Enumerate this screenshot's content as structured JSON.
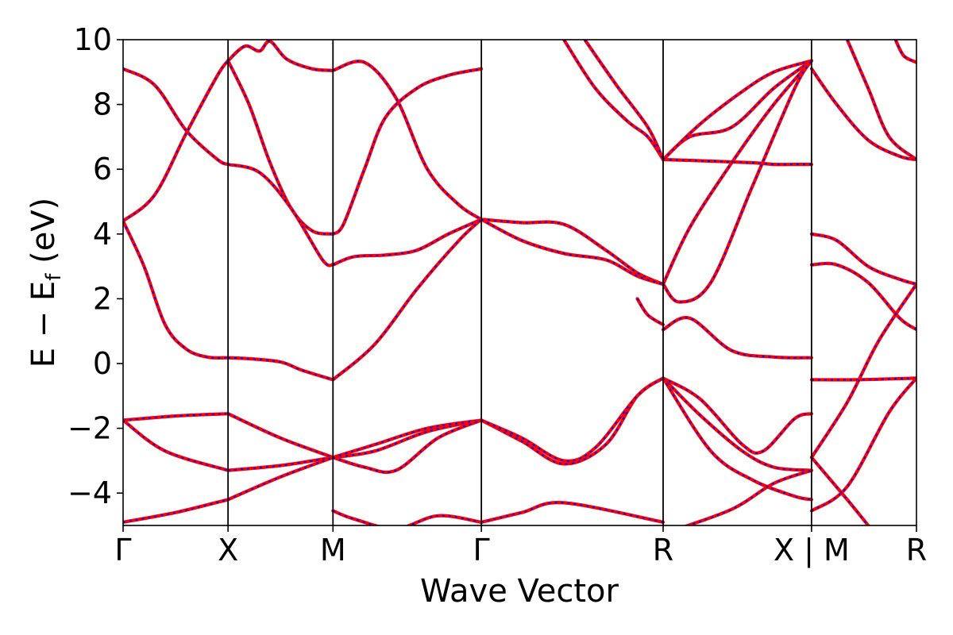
{
  "chart_data": {
    "type": "line",
    "title": "",
    "xlabel": "Wave Vector",
    "ylabel": "E − E_f (eV)",
    "ylabel_parts": {
      "main": "E − E",
      "sub": "f",
      "unit": " (eV)"
    },
    "ylim": [
      -5,
      10
    ],
    "y_ticks": [
      -4,
      -2,
      0,
      2,
      4,
      6,
      8,
      10
    ],
    "y_tick_labels": [
      "−4",
      "−2",
      "0",
      "2",
      "4",
      "6",
      "8",
      "10"
    ],
    "grid": false,
    "legend": "none",
    "kpath_labels": [
      "Γ",
      "X",
      "M",
      "Γ",
      "R",
      "X | M",
      "R"
    ],
    "kpath_positions": [
      0,
      0.5,
      1.0,
      1.707,
      2.573,
      3.28,
      3.78
    ],
    "series_style": [
      {
        "color": "#ff0000",
        "style": "solid"
      },
      {
        "color": "#0000ff",
        "style": "dashed"
      }
    ],
    "bands": [
      {
        "x": [
          0,
          0.15,
          0.3,
          0.45,
          0.5
        ],
        "y": [
          9.1,
          8.6,
          7.2,
          6.3,
          6.15
        ]
      },
      {
        "x": [
          0,
          0.15,
          0.3,
          0.45,
          0.5
        ],
        "y": [
          4.4,
          5.2,
          7.1,
          8.9,
          9.35
        ]
      },
      {
        "x": [
          0,
          0.1,
          0.2,
          0.3,
          0.4,
          0.5
        ],
        "y": [
          4.4,
          3.0,
          1.2,
          0.45,
          0.2,
          0.18
        ]
      },
      {
        "x": [
          0,
          0.25,
          0.5
        ],
        "y": [
          -1.75,
          -1.62,
          -1.55
        ]
      },
      {
        "x": [
          0,
          0.2,
          0.5
        ],
        "y": [
          -1.75,
          -2.7,
          -3.3
        ]
      },
      {
        "x": [
          0,
          0.25,
          0.5
        ],
        "y": [
          -4.9,
          -4.6,
          -4.2
        ]
      },
      {
        "x": [
          0.5,
          0.6,
          0.7,
          0.8,
          0.9,
          1.0
        ],
        "y": [
          9.35,
          8.0,
          6.2,
          4.8,
          4.1,
          4.0
        ]
      },
      {
        "x": [
          0.5,
          0.65,
          0.8,
          0.95,
          1.0
        ],
        "y": [
          6.15,
          5.9,
          4.8,
          3.2,
          3.05
        ]
      },
      {
        "x": [
          0.5,
          0.6,
          0.75,
          0.85,
          1.0
        ],
        "y": [
          0.18,
          0.15,
          0.05,
          -0.2,
          -0.5
        ]
      },
      {
        "x": [
          0.5,
          0.75,
          1.0
        ],
        "y": [
          -1.55,
          -2.3,
          -2.9
        ]
      },
      {
        "x": [
          0.5,
          0.75,
          1.0
        ],
        "y": [
          -3.3,
          -3.15,
          -2.9
        ]
      },
      {
        "x": [
          0.5,
          0.75,
          1.0
        ],
        "y": [
          -4.2,
          -3.5,
          -2.9
        ]
      },
      {
        "x": [
          0.5,
          0.58,
          0.65,
          0.7,
          0.78,
          0.9,
          1.0
        ],
        "y": [
          9.35,
          9.8,
          9.65,
          9.95,
          9.4,
          9.1,
          9.05
        ]
      },
      {
        "x": [
          1.0,
          1.15,
          1.3,
          1.45,
          1.6,
          1.707
        ],
        "y": [
          9.05,
          9.3,
          8.2,
          6.0,
          4.9,
          4.45
        ]
      },
      {
        "x": [
          1.0,
          1.05,
          1.15,
          1.25,
          1.4,
          1.55,
          1.707
        ],
        "y": [
          4.0,
          4.3,
          6.0,
          7.6,
          8.5,
          8.9,
          9.1
        ]
      },
      {
        "x": [
          1.0,
          1.1,
          1.25,
          1.4,
          1.55,
          1.707
        ],
        "y": [
          3.05,
          3.3,
          3.35,
          3.5,
          4.0,
          4.45
        ]
      },
      {
        "x": [
          1.0,
          1.2,
          1.4,
          1.6,
          1.707
        ],
        "y": [
          -0.5,
          0.6,
          2.3,
          3.8,
          4.45
        ]
      },
      {
        "x": [
          1.0,
          1.2,
          1.45,
          1.707
        ],
        "y": [
          -2.9,
          -2.7,
          -2.1,
          -1.75
        ]
      },
      {
        "x": [
          1.0,
          1.2,
          1.45,
          1.707
        ],
        "y": [
          -2.9,
          -2.5,
          -2.0,
          -1.75
        ]
      },
      {
        "x": [
          1.0,
          1.15,
          1.3,
          1.5,
          1.707
        ],
        "y": [
          -2.9,
          -3.2,
          -3.3,
          -2.3,
          -1.75
        ]
      },
      {
        "x": [
          1.0,
          1.1,
          1.3,
          1.5,
          1.707
        ],
        "y": [
          -4.55,
          -4.8,
          -5.1,
          -4.7,
          -4.9
        ]
      },
      {
        "x": [
          1.707,
          1.9,
          2.1,
          2.3,
          2.45,
          2.573
        ],
        "y": [
          4.45,
          4.35,
          4.3,
          3.5,
          2.8,
          2.45
        ]
      },
      {
        "x": [
          1.707,
          1.9,
          2.1,
          2.3,
          2.45,
          2.573
        ],
        "y": [
          4.45,
          3.8,
          3.4,
          3.2,
          2.7,
          2.45
        ]
      },
      {
        "x": [
          1.707,
          1.9,
          2.1,
          2.3,
          2.45,
          2.573
        ],
        "y": [
          -1.75,
          -2.4,
          -3.1,
          -2.5,
          -1.0,
          -0.45
        ]
      },
      {
        "x": [
          1.707,
          1.9,
          2.1,
          2.25,
          2.45,
          2.573
        ],
        "y": [
          -1.75,
          -2.3,
          -3.0,
          -2.6,
          -1.0,
          -0.45
        ]
      },
      {
        "x": [
          1.707,
          1.9,
          2.1,
          2.573
        ],
        "y": [
          -4.9,
          -4.6,
          -4.3,
          -4.9
        ]
      },
      {
        "x": [
          2.1,
          2.25,
          2.4,
          2.5,
          2.573
        ],
        "y": [
          10.0,
          8.5,
          7.5,
          7.0,
          6.3
        ]
      },
      {
        "x": [
          2.2,
          2.35,
          2.5,
          2.573
        ],
        "y": [
          10.0,
          8.6,
          7.3,
          6.3
        ]
      },
      {
        "x": [
          2.45,
          2.5,
          2.573
        ],
        "y": [
          2.0,
          1.5,
          1.2
        ]
      },
      {
        "x": [
          2.573,
          2.8,
          3.0,
          3.1,
          3.2,
          3.28
        ],
        "y": [
          6.3,
          6.25,
          6.2,
          6.15,
          6.15,
          6.15
        ]
      },
      {
        "x": [
          2.573,
          2.7,
          2.9,
          3.1,
          3.28
        ],
        "y": [
          6.3,
          7.0,
          7.3,
          8.5,
          9.35
        ]
      },
      {
        "x": [
          2.573,
          2.75,
          2.95,
          3.1,
          3.28
        ],
        "y": [
          6.3,
          7.4,
          8.4,
          9.0,
          9.35
        ]
      },
      {
        "x": [
          2.573,
          2.7,
          2.9,
          3.1,
          3.28
        ],
        "y": [
          2.45,
          4.2,
          6.2,
          8.0,
          9.35
        ]
      },
      {
        "x": [
          2.573,
          2.65,
          2.8,
          3.0,
          3.2,
          3.28
        ],
        "y": [
          2.45,
          1.9,
          2.5,
          5.5,
          8.5,
          9.35
        ]
      },
      {
        "x": [
          2.573,
          2.7,
          2.9,
          3.1,
          3.28
        ],
        "y": [
          1.05,
          1.4,
          0.4,
          0.2,
          0.18
        ]
      },
      {
        "x": [
          2.573,
          2.75,
          2.95,
          3.05,
          3.2,
          3.28
        ],
        "y": [
          -0.45,
          -1.1,
          -2.5,
          -2.7,
          -1.7,
          -1.55
        ]
      },
      {
        "x": [
          2.573,
          2.75,
          2.95,
          3.1,
          3.28
        ],
        "y": [
          -0.45,
          -1.6,
          -2.7,
          -3.2,
          -3.3
        ]
      },
      {
        "x": [
          2.573,
          2.8,
          3.0,
          3.2,
          3.28
        ],
        "y": [
          -0.45,
          -2.7,
          -3.6,
          -4.1,
          -4.2
        ]
      },
      {
        "x": [
          2.6,
          2.9,
          3.1,
          3.28
        ],
        "y": [
          -5.2,
          -4.5,
          -3.7,
          -3.3
        ]
      },
      {
        "x": [
          3.28,
          3.4,
          3.55,
          3.7,
          3.78
        ],
        "y": [
          9.1,
          8.0,
          6.9,
          6.4,
          6.3
        ]
      },
      {
        "x": [
          3.45,
          3.55,
          3.65,
          3.78
        ],
        "y": [
          10.0,
          8.5,
          7.0,
          6.3
        ]
      },
      {
        "x": [
          3.68,
          3.72,
          3.78
        ],
        "y": [
          10.0,
          9.5,
          9.3
        ]
      },
      {
        "x": [
          3.28,
          3.4,
          3.55,
          3.7,
          3.78
        ],
        "y": [
          4.0,
          3.8,
          3.0,
          2.6,
          2.45
        ]
      },
      {
        "x": [
          3.28,
          3.4,
          3.55,
          3.7,
          3.78
        ],
        "y": [
          3.05,
          3.05,
          2.5,
          1.4,
          1.05
        ]
      },
      {
        "x": [
          3.28,
          3.5,
          3.78
        ],
        "y": [
          -0.5,
          -0.5,
          -0.45
        ]
      },
      {
        "x": [
          3.28,
          3.45,
          3.6,
          3.78
        ],
        "y": [
          -2.9,
          -1.2,
          0.7,
          2.45
        ]
      },
      {
        "x": [
          3.28,
          3.45,
          3.65,
          3.78
        ],
        "y": [
          -4.55,
          -3.8,
          -1.5,
          -0.45
        ]
      },
      {
        "x": [
          3.28,
          3.45,
          3.55
        ],
        "y": [
          -2.9,
          -4.2,
          -5.0
        ]
      }
    ]
  }
}
